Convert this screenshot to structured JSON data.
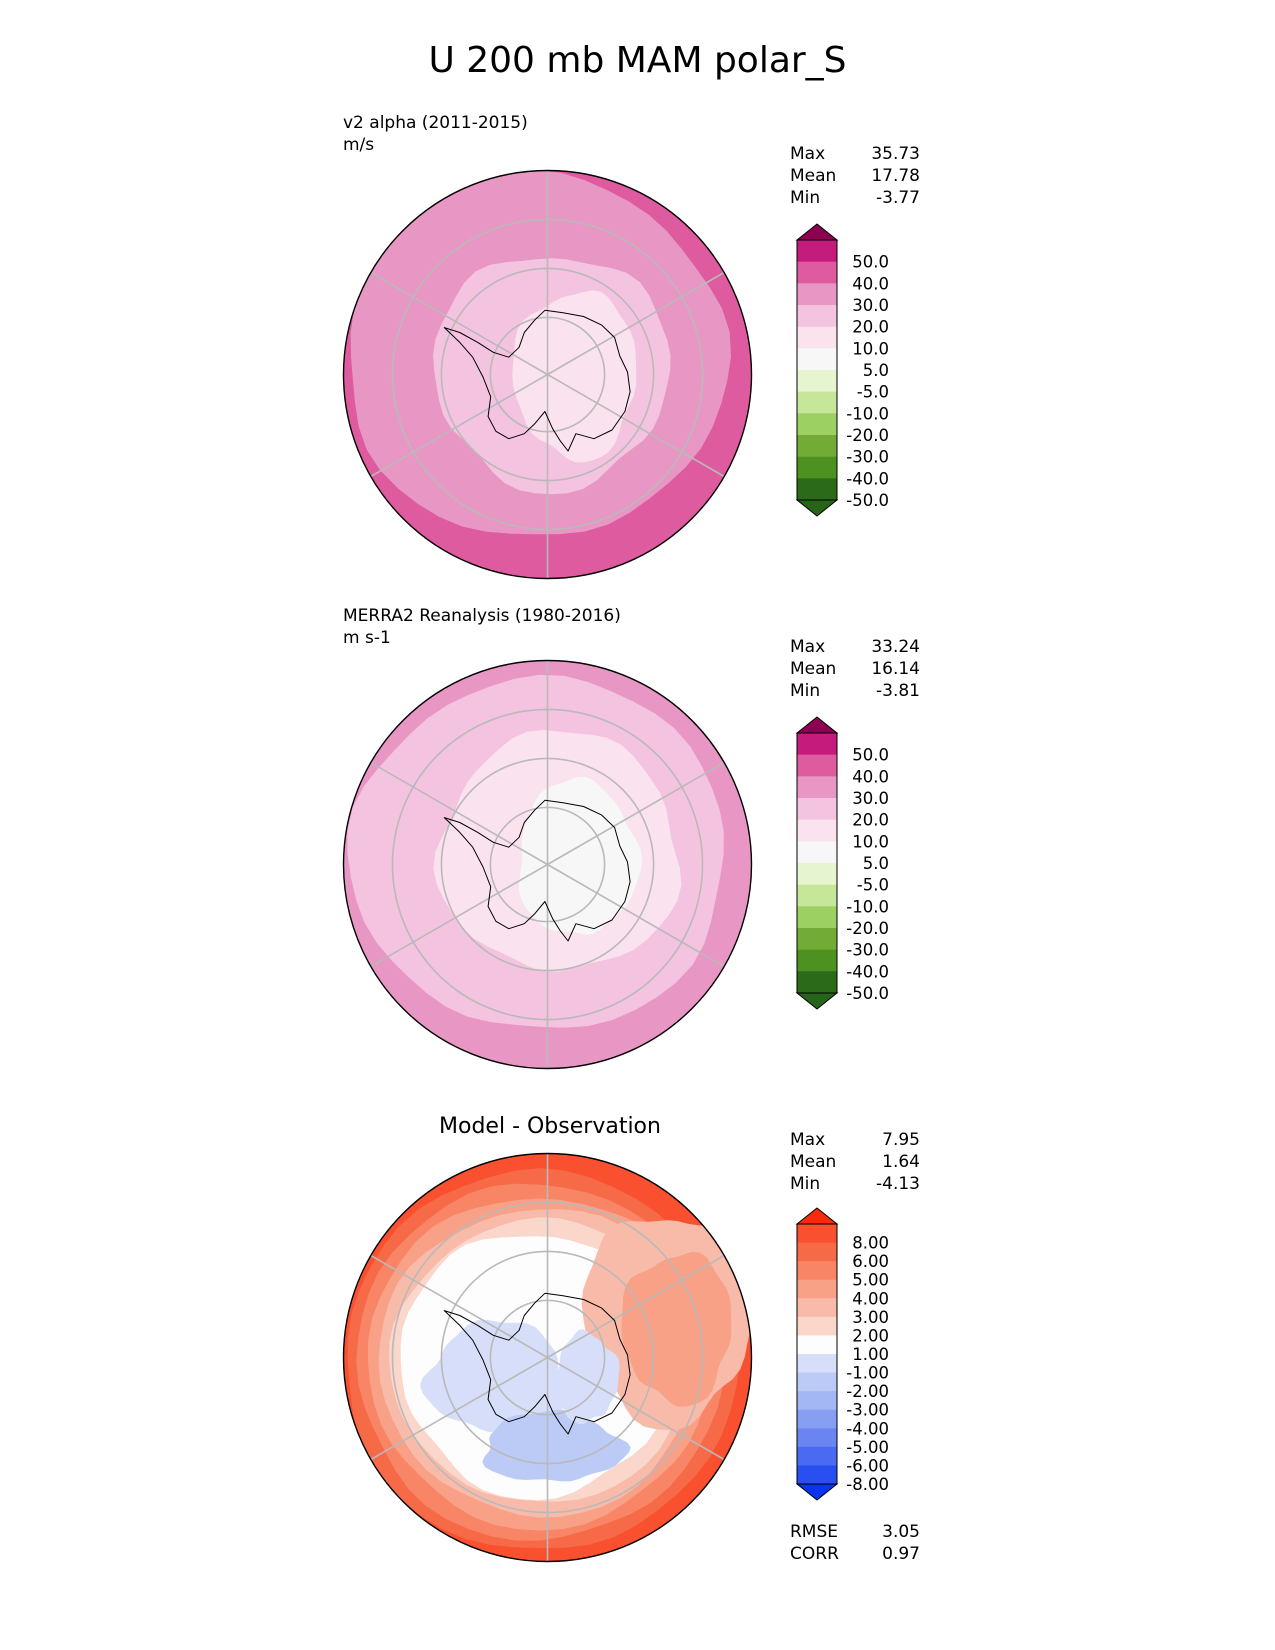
{
  "title": "U 200 mb MAM polar_S",
  "chart_data": [
    {
      "type": "heatmap",
      "projection": "south polar stereographic",
      "label_line1": "v2 alpha (2011-2015)",
      "label_line2": "m/s",
      "stats": [
        {
          "label": "Max",
          "value": "35.73"
        },
        {
          "label": "Mean",
          "value": "17.78"
        },
        {
          "label": "Min",
          "value": "-3.77"
        }
      ],
      "colorbar": {
        "ticks": [
          "50.0",
          "40.0",
          "30.0",
          "20.0",
          "10.0",
          "5.0",
          "-5.0",
          "-10.0",
          "-20.0",
          "-30.0",
          "-40.0",
          "-50.0"
        ],
        "colors": [
          "#8e0152",
          "#c51b7d",
          "#de5ba0",
          "#e897c4",
          "#f4c3df",
          "#fbe2ef",
          "#f7f7f7",
          "#e6f5d0",
          "#c6e69a",
          "#9dd063",
          "#72ac37",
          "#4d9221",
          "#2a6a18",
          "#276419"
        ]
      },
      "field_levels": {
        "outer_ring": 30,
        "mid_ring": 20,
        "inner_ring": 10,
        "core": 5
      }
    },
    {
      "type": "heatmap",
      "projection": "south polar stereographic",
      "label_line1": "MERRA2 Reanalysis (1980-2016)",
      "label_line2": "m s-1",
      "stats": [
        {
          "label": "Max",
          "value": "33.24"
        },
        {
          "label": "Mean",
          "value": "16.14"
        },
        {
          "label": "Min",
          "value": "-3.81"
        }
      ],
      "colorbar": {
        "ticks": [
          "50.0",
          "40.0",
          "30.0",
          "20.0",
          "10.0",
          "5.0",
          "-5.0",
          "-10.0",
          "-20.0",
          "-30.0",
          "-40.0",
          "-50.0"
        ],
        "colors": [
          "#8e0152",
          "#c51b7d",
          "#de5ba0",
          "#e897c4",
          "#f4c3df",
          "#fbe2ef",
          "#f7f7f7",
          "#e6f5d0",
          "#c6e69a",
          "#9dd063",
          "#72ac37",
          "#4d9221",
          "#2a6a18",
          "#276419"
        ]
      },
      "field_levels": {
        "outer_ring": 20,
        "mid_ring": 10,
        "inner_ring": 5,
        "core": -5
      }
    },
    {
      "type": "heatmap",
      "projection": "south polar stereographic",
      "title": "Model - Observation",
      "stats": [
        {
          "label": "Max",
          "value": "7.95"
        },
        {
          "label": "Mean",
          "value": "1.64"
        },
        {
          "label": "Min",
          "value": "-4.13"
        }
      ],
      "colorbar": {
        "ticks": [
          "8.00",
          "6.00",
          "5.00",
          "4.00",
          "3.00",
          "2.00",
          "1.00",
          "-1.00",
          "-2.00",
          "-3.00",
          "-4.00",
          "-5.00",
          "-6.00",
          "-8.00"
        ],
        "colors": [
          "#fb2a0b",
          "#f9502f",
          "#f76a48",
          "#f88666",
          "#f8a187",
          "#f9bba9",
          "#fbd6cb",
          "#fdfdfd",
          "#d6def9",
          "#bccbf6",
          "#a2b7f4",
          "#879ff3",
          "#6a84f2",
          "#4a6af2",
          "#2a4ff1",
          "#0a34ee"
        ]
      },
      "summary": [
        {
          "label": "RMSE",
          "value": "3.05"
        },
        {
          "label": "CORR",
          "value": "0.97"
        }
      ]
    }
  ]
}
